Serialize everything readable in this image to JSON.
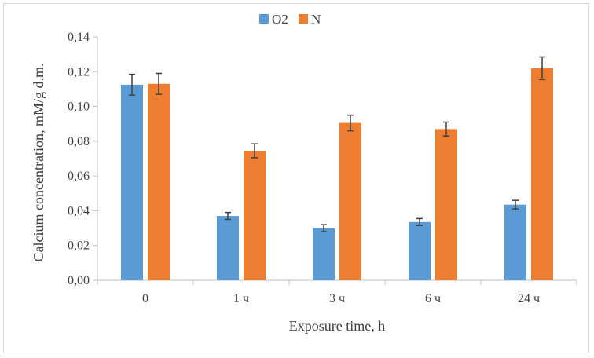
{
  "chart_data": {
    "type": "bar",
    "categories": [
      "0",
      "1 ч",
      "3 ч",
      "6 ч",
      "24 ч"
    ],
    "series": [
      {
        "name": "O2",
        "color": "#5b9bd5",
        "values": [
          0.1125,
          0.037,
          0.03,
          0.0335,
          0.0435
        ],
        "errors": [
          0.006,
          0.002,
          0.002,
          0.002,
          0.0025
        ]
      },
      {
        "name": "N",
        "color": "#ed7d31",
        "values": [
          0.113,
          0.0745,
          0.0905,
          0.087,
          0.122
        ],
        "errors": [
          0.006,
          0.004,
          0.0045,
          0.004,
          0.0065
        ]
      }
    ],
    "title": "",
    "xlabel": "Exposure time, h",
    "ylabel": "Calcium concentration, mM/g d.m.",
    "ylim": [
      0,
      0.14
    ],
    "yticks": [
      "0,00",
      "0,02",
      "0,04",
      "0,06",
      "0,08",
      "0,10",
      "0,12",
      "0,14"
    ],
    "grid": false,
    "legend": "top-center",
    "error_bars": true
  }
}
